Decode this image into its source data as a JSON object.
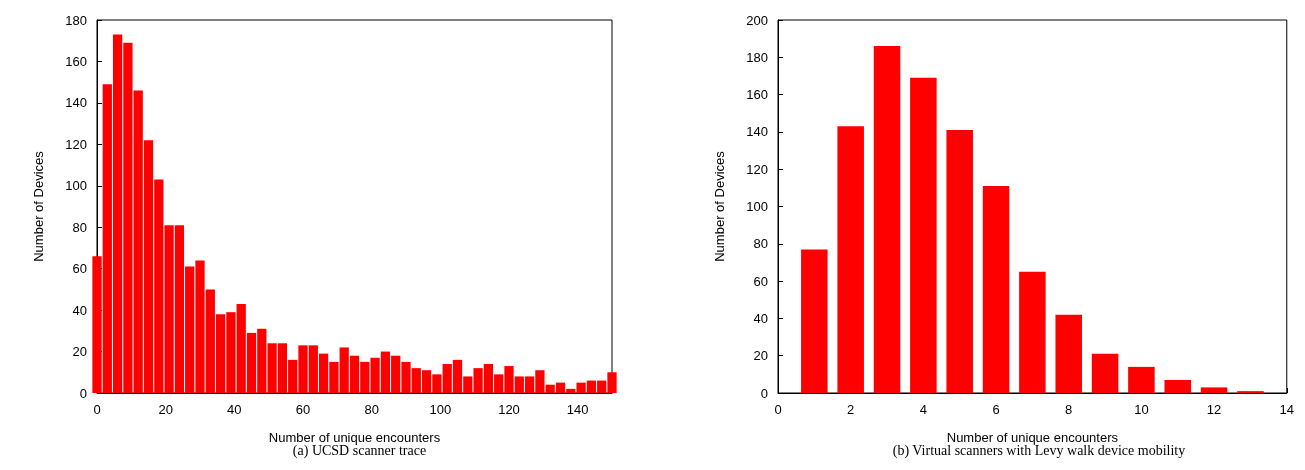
{
  "chart_data": [
    {
      "type": "bar",
      "title": "(a) UCSD scanner trace",
      "xlabel": "Number of unique encounters",
      "ylabel": "Number of Devices",
      "color": "#ff0000",
      "grid": false,
      "x": [
        0,
        3,
        6,
        9,
        12,
        15,
        18,
        21,
        24,
        27,
        30,
        33,
        36,
        39,
        42,
        45,
        48,
        51,
        54,
        57,
        60,
        63,
        66,
        69,
        72,
        75,
        78,
        81,
        84,
        87,
        90,
        93,
        96,
        99,
        102,
        105,
        108,
        111,
        114,
        117,
        120,
        123,
        126,
        129,
        132,
        135,
        138,
        141,
        144,
        147,
        150
      ],
      "values": [
        66,
        149,
        173,
        169,
        146,
        122,
        103,
        81,
        81,
        61,
        64,
        50,
        38,
        39,
        43,
        29,
        31,
        24,
        24,
        16,
        23,
        23,
        19,
        15,
        22,
        18,
        15,
        17,
        20,
        18,
        15,
        12,
        11,
        9,
        14,
        16,
        8,
        12,
        14,
        9,
        13,
        8,
        8,
        11,
        4,
        5,
        2,
        5,
        6,
        6,
        10
      ],
      "xlim": [
        0,
        150
      ],
      "xticks": [
        0,
        20,
        40,
        60,
        80,
        100,
        120,
        140
      ],
      "ylim": [
        0,
        180
      ],
      "yticks": [
        0,
        20,
        40,
        60,
        80,
        100,
        120,
        140,
        160,
        180
      ]
    },
    {
      "type": "bar",
      "title": "(b) Virtual scanners with Levy walk device mobility",
      "xlabel": "Number of unique encounters",
      "ylabel": "Number of Devices",
      "color": "#ff0000",
      "grid": false,
      "x": [
        1,
        2,
        3,
        4,
        5,
        6,
        7,
        8,
        9,
        10,
        11,
        12,
        13
      ],
      "values": [
        77,
        143,
        186,
        169,
        141,
        111,
        65,
        42,
        21,
        14,
        7,
        3,
        1
      ],
      "xlim": [
        0,
        14
      ],
      "xticks": [
        0,
        2,
        4,
        6,
        8,
        10,
        12,
        14
      ],
      "ylim": [
        0,
        200
      ],
      "yticks": [
        0,
        20,
        40,
        60,
        80,
        100,
        120,
        140,
        160,
        180,
        200
      ]
    }
  ]
}
